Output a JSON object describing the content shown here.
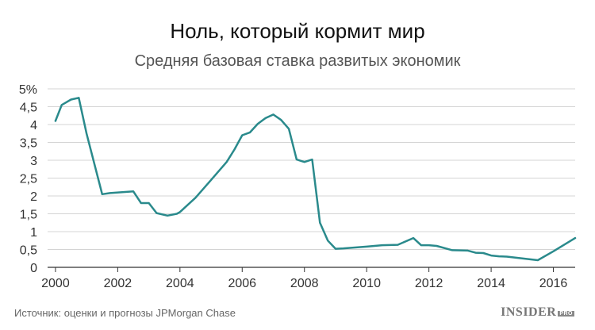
{
  "chart_data": {
    "type": "line",
    "title": "Ноль, который кормит мир",
    "subtitle": "Средняя базовая ставка развитых экономик",
    "xlabel": "",
    "ylabel": "",
    "xlim": [
      1999.9,
      2016.7
    ],
    "ylim": [
      0,
      5
    ],
    "x_ticks": [
      "2000",
      "2002",
      "2004",
      "2006",
      "2008",
      "2010",
      "2012",
      "2014",
      "2016"
    ],
    "y_ticks": [
      "0",
      "0,5",
      "1",
      "1,5",
      "2",
      "2,5",
      "3",
      "3,5",
      "4",
      "4,5",
      "5%"
    ],
    "grid": "horizontal",
    "line_color": "#2a8a8c",
    "series": [
      {
        "x": [
          2000.0,
          2000.2,
          2000.5,
          2000.75,
          2001.0,
          2001.5,
          2001.75,
          2002.5,
          2002.75,
          2003.0,
          2003.25,
          2003.6,
          2003.9,
          2004.0,
          2004.5,
          2005.0,
          2005.5,
          2005.75,
          2006.0,
          2006.25,
          2006.5,
          2006.75,
          2007.0,
          2007.25,
          2007.5,
          2007.75,
          2008.0,
          2008.25,
          2008.5,
          2008.75,
          2009.0,
          2009.25,
          2010.0,
          2010.5,
          2011.0,
          2011.5,
          2011.75,
          2012.0,
          2012.25,
          2012.75,
          2013.25,
          2013.5,
          2013.75,
          2014.0,
          2014.25,
          2014.5,
          2015.0,
          2015.5,
          2016.0,
          2016.7
        ],
        "values": [
          4.1,
          4.55,
          4.7,
          4.75,
          3.75,
          2.05,
          2.08,
          2.13,
          1.8,
          1.8,
          1.52,
          1.45,
          1.5,
          1.55,
          1.95,
          2.45,
          2.95,
          3.3,
          3.7,
          3.78,
          4.02,
          4.18,
          4.28,
          4.13,
          3.88,
          3.02,
          2.95,
          3.02,
          1.25,
          0.75,
          0.52,
          0.53,
          0.58,
          0.62,
          0.63,
          0.82,
          0.62,
          0.62,
          0.6,
          0.48,
          0.47,
          0.41,
          0.4,
          0.33,
          0.31,
          0.3,
          0.25,
          0.2,
          0.45,
          0.82
        ]
      }
    ]
  },
  "source": "Источник: оценки и прогнозы JPMorgan Chase",
  "logo": {
    "main": "INSIDER",
    "pro": "PRO"
  }
}
